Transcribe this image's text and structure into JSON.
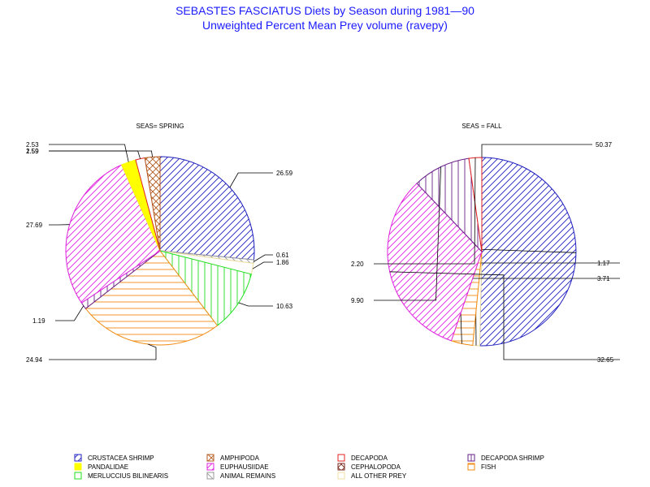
{
  "title": "SEBASTES FASCIATUS Diets by Season during 1981—90",
  "subtitle": "Unweighted Percent Mean Prey volume (ravepy)",
  "categories": [
    {
      "key": "crustacea_shrimp",
      "label": "CRUSTACEA SHRIMP",
      "color": "#1f1fbf",
      "pattern": "diag-fwd"
    },
    {
      "key": "amphipoda",
      "label": "AMPHIPODA",
      "color": "#b35a1f",
      "pattern": "cross"
    },
    {
      "key": "decapoda",
      "label": "DECAPODA",
      "color": "#e02020",
      "pattern": "none"
    },
    {
      "key": "decapoda_shrimp",
      "label": "DECAPODA SHRIMP",
      "color": "#6a1f8a",
      "pattern": "vert"
    },
    {
      "key": "pandalidae",
      "label": "PANDALIDAE",
      "color": "#ffff00",
      "pattern": "solid"
    },
    {
      "key": "euphausiidae",
      "label": "EUPHAUSIIDAE",
      "color": "#e020e0",
      "pattern": "diag-fwd"
    },
    {
      "key": "cephalopoda",
      "label": "CEPHALOPODA",
      "color": "#7a2a1f",
      "pattern": "cross"
    },
    {
      "key": "fish",
      "label": "FISH",
      "color": "#f08a10",
      "pattern": "horiz"
    },
    {
      "key": "merluccius_bilinearis",
      "label": "MERLUCCIUS BILINEARIS",
      "color": "#20e020",
      "pattern": "vert"
    },
    {
      "key": "animal_remains",
      "label": "ANIMAL REMAINS",
      "color": "#999999",
      "pattern": "diag-back"
    },
    {
      "key": "all_other_prey",
      "label": "ALL OTHER PREY",
      "color": "#f0e0a0",
      "pattern": "none"
    }
  ],
  "chart_data": [
    {
      "type": "pie",
      "title": "SEAS= SPRING",
      "slices": [
        {
          "category": "crustacea_shrimp",
          "value": 26.59,
          "label": "26.59"
        },
        {
          "category": "animal_remains",
          "value": 0.61,
          "label": "0.61"
        },
        {
          "category": "all_other_prey",
          "value": 1.86,
          "label": "1.86"
        },
        {
          "category": "merluccius_bilinearis",
          "value": 10.63,
          "label": "10.63"
        },
        {
          "category": "fish",
          "value": 24.94,
          "label": "24.94"
        },
        {
          "category": "decapoda_shrimp",
          "value": 1.19,
          "label": "1.19"
        },
        {
          "category": "euphausiidae",
          "value": 27.69,
          "label": "27.69"
        },
        {
          "category": "pandalidae",
          "value": 2.53,
          "label": "2.53"
        },
        {
          "category": "decapoda",
          "value": 1.59,
          "label": "1.59"
        },
        {
          "category": "amphipoda",
          "value": 2.59,
          "label": "2.59"
        }
      ]
    },
    {
      "type": "pie",
      "title": "SEAS = FALL",
      "slices": [
        {
          "category": "crustacea_shrimp",
          "value": 50.37,
          "label": "50.37"
        },
        {
          "category": "all_other_prey",
          "value": 1.17,
          "label": "1.17"
        },
        {
          "category": "fish",
          "value": 3.71,
          "label": "3.71"
        },
        {
          "category": "euphausiidae",
          "value": 32.65,
          "label": "32.65"
        },
        {
          "category": "decapoda_shrimp",
          "value": 9.9,
          "label": "9.90"
        },
        {
          "category": "decapoda",
          "value": 2.2,
          "label": "2.20"
        }
      ]
    }
  ]
}
